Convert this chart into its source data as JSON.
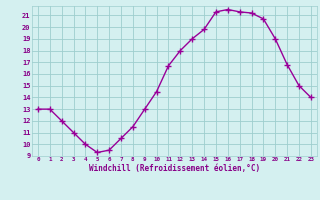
{
  "x": [
    0,
    1,
    2,
    3,
    4,
    5,
    6,
    7,
    8,
    9,
    10,
    11,
    12,
    13,
    14,
    15,
    16,
    17,
    18,
    19,
    20,
    21,
    22,
    23
  ],
  "y": [
    13,
    13,
    12,
    11,
    10,
    9.3,
    9.5,
    10.5,
    11.5,
    13.0,
    14.5,
    16.7,
    18.0,
    19.0,
    19.8,
    21.3,
    21.5,
    21.3,
    21.2,
    20.7,
    19.0,
    16.8,
    15.0,
    14.0
  ],
  "line_color": "#990099",
  "marker": "P",
  "bg_color": "#d4f0f0",
  "grid_color": "#9ecece",
  "xlabel": "Windchill (Refroidissement éolien,°C)",
  "xlabel_color": "#880088",
  "tick_color": "#880088",
  "ylim": [
    9,
    21.8
  ],
  "xlim": [
    -0.5,
    23.5
  ],
  "yticks": [
    9,
    10,
    11,
    12,
    13,
    14,
    15,
    16,
    17,
    18,
    19,
    20,
    21
  ],
  "xticks": [
    0,
    1,
    2,
    3,
    4,
    5,
    6,
    7,
    8,
    9,
    10,
    11,
    12,
    13,
    14,
    15,
    16,
    17,
    18,
    19,
    20,
    21,
    22,
    23
  ]
}
